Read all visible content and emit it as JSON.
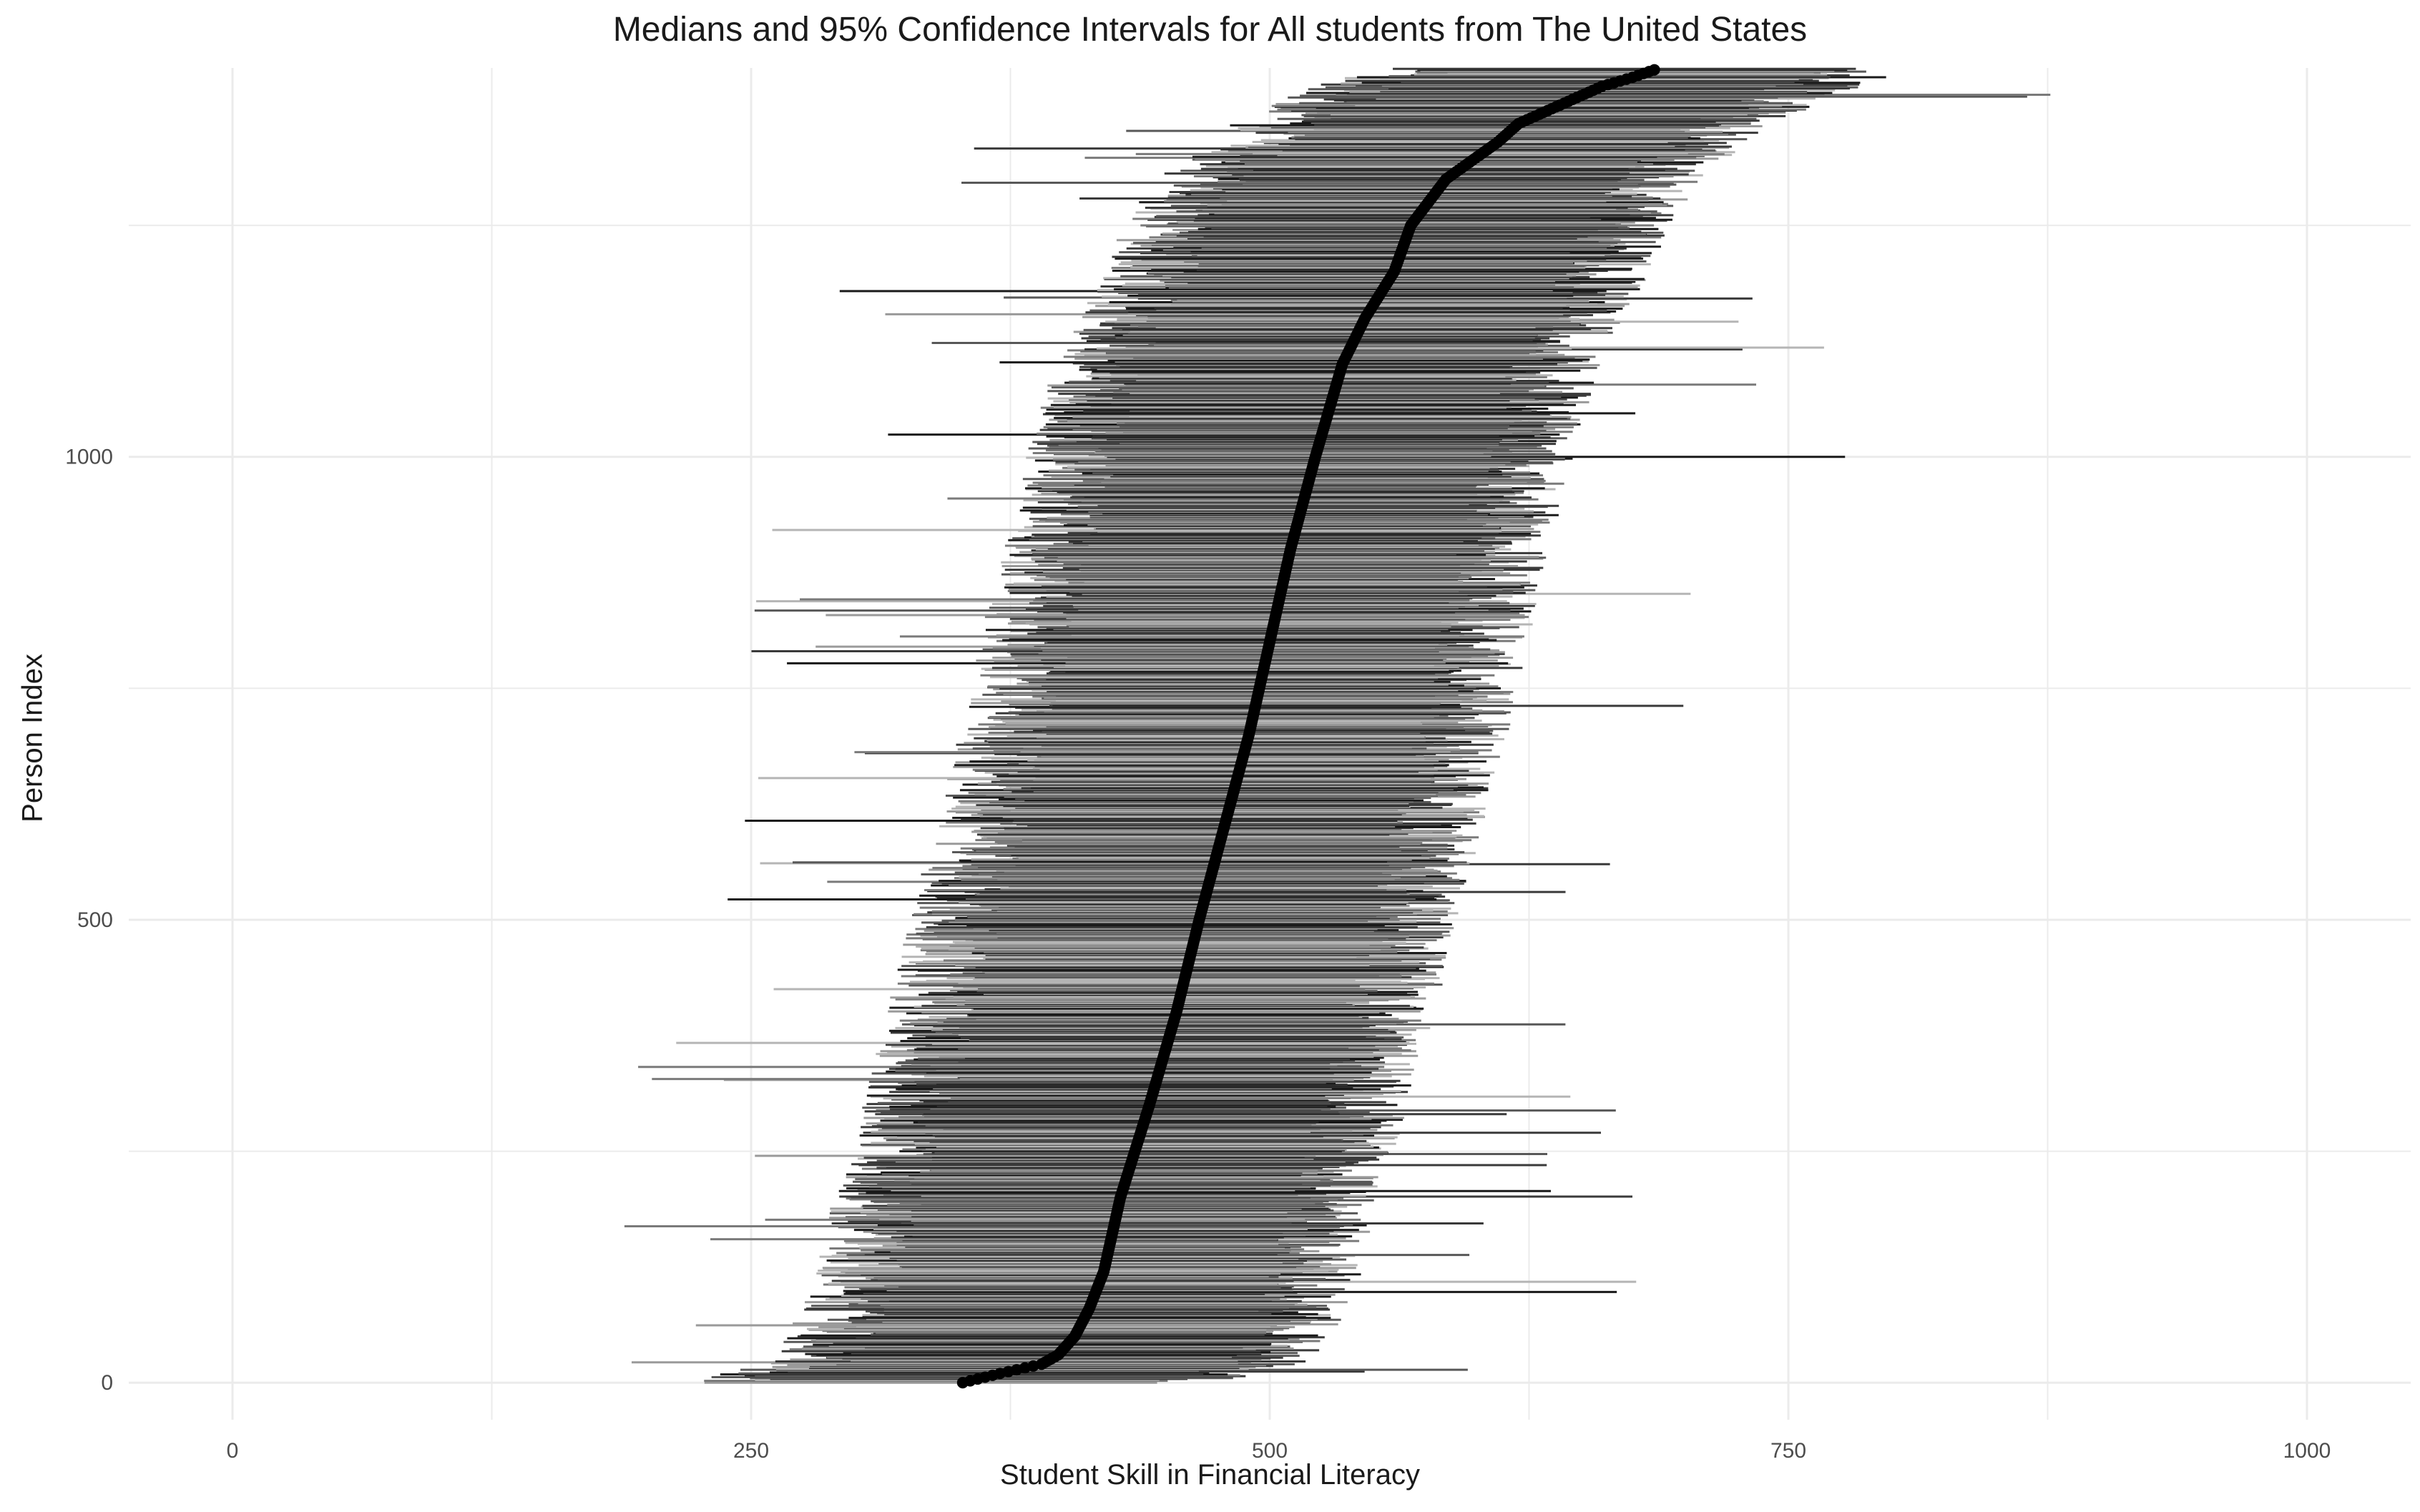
{
  "chart_data": {
    "type": "scatter",
    "title": "Medians and 95% Confidence Intervals for All students from The United States",
    "xlabel": "Student Skill in Financial Literacy",
    "ylabel": "Person Index",
    "xlim": [
      -50,
      1050
    ],
    "ylim": [
      -40,
      1420
    ],
    "x_ticks": [
      0,
      250,
      500,
      750,
      1000
    ],
    "x_tick_labels": [
      "0",
      "250",
      "500",
      "750",
      "1000"
    ],
    "y_ticks": [
      0,
      500,
      1000
    ],
    "y_tick_labels": [
      "0",
      "500",
      "1000"
    ],
    "grid": true,
    "legend": "none",
    "n_persons": 1420,
    "median_profile": {
      "index": [
        0,
        10,
        20,
        30,
        50,
        80,
        120,
        200,
        300,
        400,
        500,
        600,
        700,
        800,
        900,
        1000,
        1100,
        1150,
        1200,
        1250,
        1300,
        1340,
        1360,
        1380,
        1400,
        1410,
        1420
      ],
      "median": [
        352,
        370,
        390,
        398,
        406,
        413,
        420,
        428,
        442,
        455,
        466,
        478,
        490,
        500,
        510,
        522,
        535,
        546,
        560,
        568,
        585,
        610,
        620,
        640,
        660,
        675,
        688
      ]
    },
    "ci_band": {
      "typical_lower_offset": -110,
      "typical_upper_offset": 90
    },
    "colors": {
      "points": "#000000",
      "ci_shades": [
        "#1a1a1a",
        "#3a3a3a",
        "#585858",
        "#7a7a7a",
        "#9a9a9a",
        "#b5b5b5"
      ],
      "grid": "#ebebeb"
    }
  }
}
